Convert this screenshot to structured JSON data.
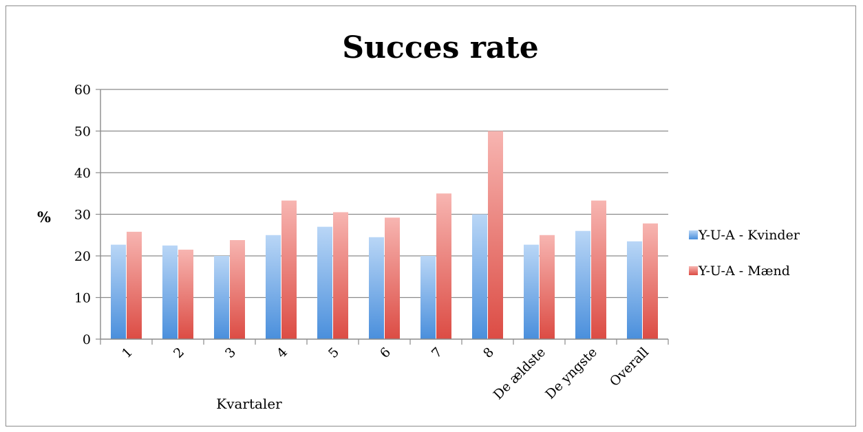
{
  "chart_data": {
    "type": "bar",
    "title": "Succes rate",
    "xlabel": "Kvartaler",
    "ylabel": "%",
    "ylim": [
      0,
      60
    ],
    "yticks": [
      0,
      10,
      20,
      30,
      40,
      50,
      60
    ],
    "grid": true,
    "legend_position": "right",
    "categories": [
      "1",
      "2",
      "3",
      "4",
      "5",
      "6",
      "7",
      "8",
      "De ældste",
      "De yngste",
      "Overall"
    ],
    "series": [
      {
        "name": "Y-U-A - Kvinder",
        "color": "#5b9bd5",
        "values": [
          22.7,
          22.5,
          20.0,
          25.0,
          27.0,
          24.5,
          20.0,
          30.0,
          22.7,
          26.0,
          23.5
        ]
      },
      {
        "name": "Y-U-A - Mænd",
        "color": "#e0605a",
        "values": [
          25.8,
          21.5,
          23.8,
          33.3,
          30.5,
          29.2,
          35.0,
          50.0,
          25.0,
          33.3,
          27.8
        ]
      }
    ]
  }
}
